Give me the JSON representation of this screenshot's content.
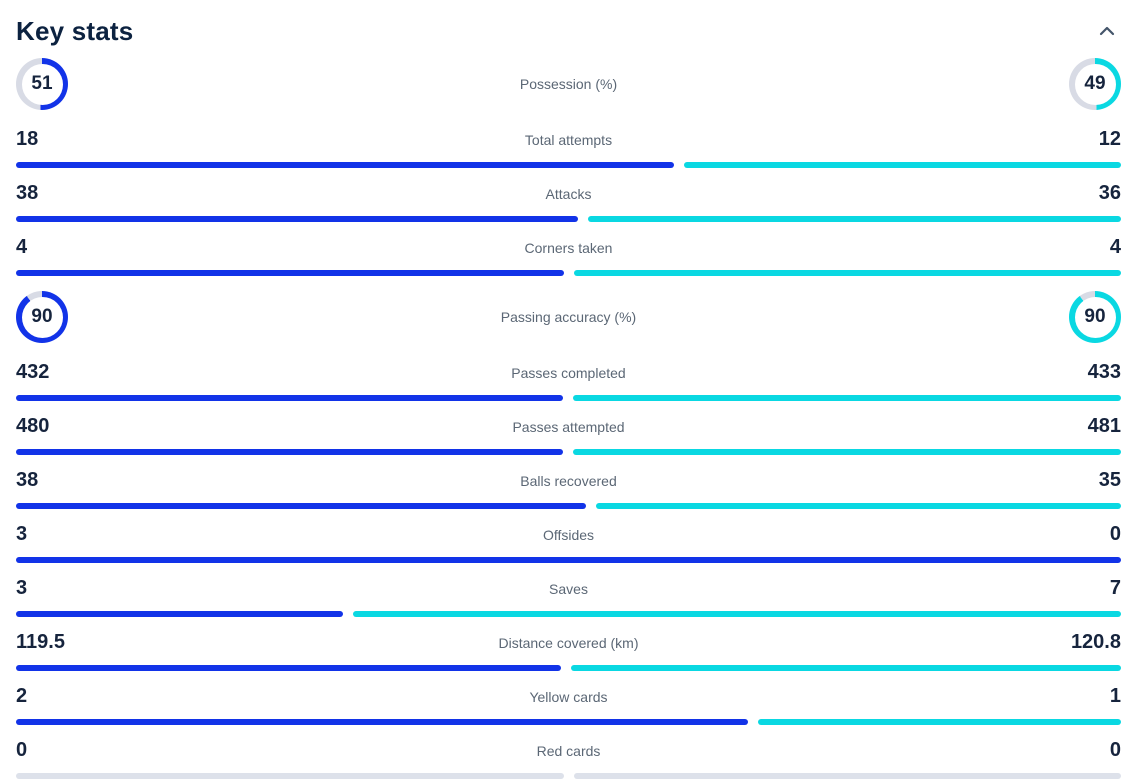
{
  "header": {
    "title": "Key stats",
    "collapse_icon": "chevron-up"
  },
  "colors": {
    "home": "#1233e8",
    "away": "#0ad8e2",
    "track": "#dde1ea",
    "ring_track": "#d8dbe5",
    "title": "#0c2240",
    "text_dark": "#16243d",
    "label": "#5b6775",
    "chevron": "#44556a"
  },
  "chart_data": {
    "type": "table",
    "title": "Key stats",
    "rows": [
      {
        "type": "ring",
        "label": "Possession (%)",
        "home": 51,
        "away": 49
      },
      {
        "type": "bar",
        "label": "Total attempts",
        "home": 18,
        "away": 12
      },
      {
        "type": "bar",
        "label": "Attacks",
        "home": 38,
        "away": 36
      },
      {
        "type": "bar",
        "label": "Corners taken",
        "home": 4,
        "away": 4
      },
      {
        "type": "ring",
        "label": "Passing accuracy (%)",
        "home": 90,
        "away": 90
      },
      {
        "type": "bar",
        "label": "Passes completed",
        "home": 432,
        "away": 433
      },
      {
        "type": "bar",
        "label": "Passes attempted",
        "home": 480,
        "away": 481
      },
      {
        "type": "bar",
        "label": "Balls recovered",
        "home": 38,
        "away": 35
      },
      {
        "type": "bar",
        "label": "Offsides",
        "home": 3,
        "away": 0
      },
      {
        "type": "bar",
        "label": "Saves",
        "home": 3,
        "away": 7
      },
      {
        "type": "bar",
        "label": "Distance covered (km)",
        "home": 119.5,
        "away": 120.8
      },
      {
        "type": "bar",
        "label": "Yellow cards",
        "home": 2,
        "away": 1
      },
      {
        "type": "bar",
        "label": "Red cards",
        "home": 0,
        "away": 0
      }
    ]
  }
}
